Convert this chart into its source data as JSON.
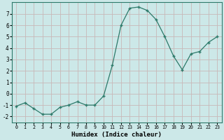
{
  "x": [
    0,
    1,
    2,
    3,
    4,
    5,
    6,
    7,
    8,
    9,
    10,
    11,
    12,
    13,
    14,
    15,
    16,
    17,
    18,
    19,
    20,
    21,
    22,
    23
  ],
  "y": [
    -1.1,
    -0.8,
    -1.3,
    -1.8,
    -1.8,
    -1.2,
    -1.0,
    -0.7,
    -1.0,
    -1.0,
    -0.2,
    2.5,
    6.0,
    7.5,
    7.6,
    7.3,
    6.5,
    5.0,
    3.3,
    2.1,
    3.5,
    3.7,
    4.5,
    5.0
  ],
  "xlabel": "Humidex (Indice chaleur)",
  "ylim": [
    -2.5,
    8.0
  ],
  "xlim": [
    -0.5,
    23.5
  ],
  "yticks": [
    -2,
    -1,
    0,
    1,
    2,
    3,
    4,
    5,
    6,
    7
  ],
  "xticks": [
    0,
    1,
    2,
    3,
    4,
    5,
    6,
    7,
    8,
    9,
    10,
    11,
    12,
    13,
    14,
    15,
    16,
    17,
    18,
    19,
    20,
    21,
    22,
    23
  ],
  "line_color": "#2d7a6a",
  "marker_color": "#2d7a6a",
  "bg_color": "#cce8e8",
  "grid_color": "#c8b8b8"
}
